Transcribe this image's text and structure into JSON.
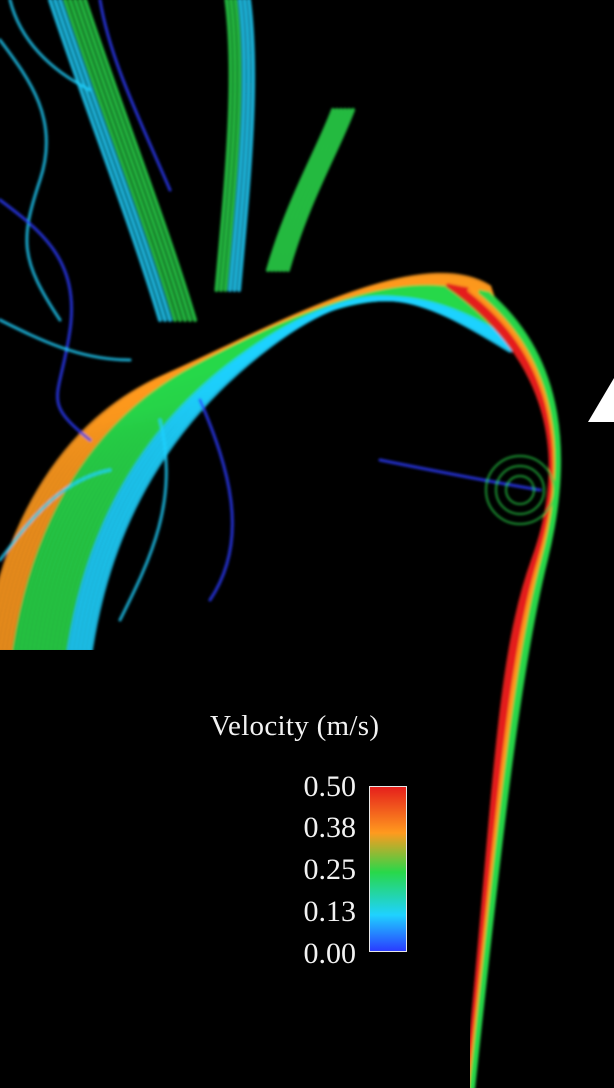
{
  "scene": {
    "subject": "4D flow velocity streamlines through aortic arch",
    "colormap": [
      "#2a3cff",
      "#1fd2ff",
      "#28d84a",
      "#ff9a1e",
      "#e5201c"
    ]
  },
  "legend": {
    "title": "Velocity (m/s)",
    "ticks": [
      "0.50",
      "0.38",
      "0.25",
      "0.13",
      "0.00"
    ],
    "colors": {
      "top": "#e5201c",
      "upper": "#ff9a1e",
      "mid": "#28d84a",
      "lower": "#1fd2ff",
      "bottom": "#2a3cff"
    }
  }
}
